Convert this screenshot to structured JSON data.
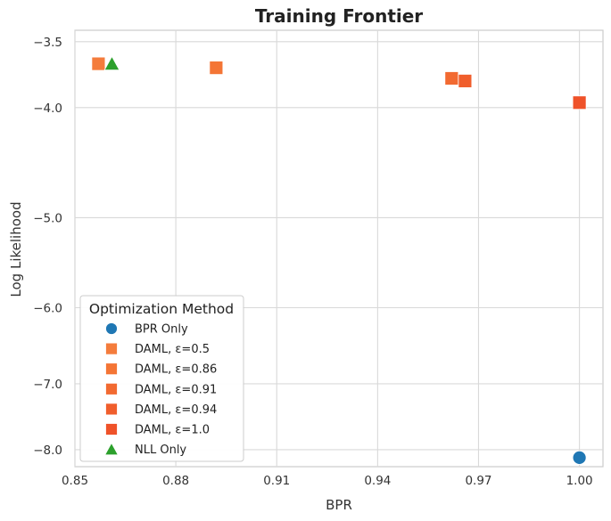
{
  "chart_data": {
    "type": "scatter",
    "title": "Training Frontier",
    "xlabel": "BPR",
    "ylabel": "Log Likelihood",
    "xlim": [
      0.85,
      1.007
    ],
    "ylim": [
      -8.28,
      -3.42
    ],
    "y_scale": "log-like (non-linear, values shown as tick labels)",
    "xticks": [
      {
        "value": 0.85,
        "label": "0.85"
      },
      {
        "value": 0.88,
        "label": "0.88"
      },
      {
        "value": 0.91,
        "label": "0.91"
      },
      {
        "value": 0.94,
        "label": "0.94"
      },
      {
        "value": 0.97,
        "label": "0.97"
      },
      {
        "value": 1.0,
        "label": "1.00"
      }
    ],
    "yticks": [
      {
        "value": -3.5,
        "label": "−3.5"
      },
      {
        "value": -4.0,
        "label": "−4.0"
      },
      {
        "value": -5.0,
        "label": "−5.0"
      },
      {
        "value": -6.0,
        "label": "−6.0"
      },
      {
        "value": -7.0,
        "label": "−7.0"
      },
      {
        "value": -8.0,
        "label": "−8.0"
      }
    ],
    "grid": true,
    "legend": {
      "title": "Optimization Method",
      "position": "bottom-left"
    },
    "series": [
      {
        "name": "BPR Only",
        "marker": "circle",
        "color": "#1f77b4",
        "points": [
          {
            "x": 1.0,
            "y": -8.13
          }
        ]
      },
      {
        "name": "DAML, ε=0.5",
        "marker": "square",
        "color": "#f47c3c",
        "points": [
          {
            "x": 0.857,
            "y": -3.66
          }
        ]
      },
      {
        "name": "DAML, ε=0.86",
        "marker": "square",
        "color": "#f47535",
        "points": [
          {
            "x": 0.892,
            "y": -3.69
          }
        ]
      },
      {
        "name": "DAML, ε=0.91",
        "marker": "square",
        "color": "#f26a31",
        "points": [
          {
            "x": 0.962,
            "y": -3.77
          }
        ]
      },
      {
        "name": "DAML, ε=0.94",
        "marker": "square",
        "color": "#f05e2c",
        "points": [
          {
            "x": 0.966,
            "y": -3.79
          }
        ]
      },
      {
        "name": "DAML, ε=1.0",
        "marker": "square",
        "color": "#ef5229",
        "points": [
          {
            "x": 1.0,
            "y": -3.96
          }
        ]
      },
      {
        "name": "NLL Only",
        "marker": "triangle",
        "color": "#2ca02c",
        "points": [
          {
            "x": 0.861,
            "y": -3.66
          }
        ]
      }
    ]
  }
}
